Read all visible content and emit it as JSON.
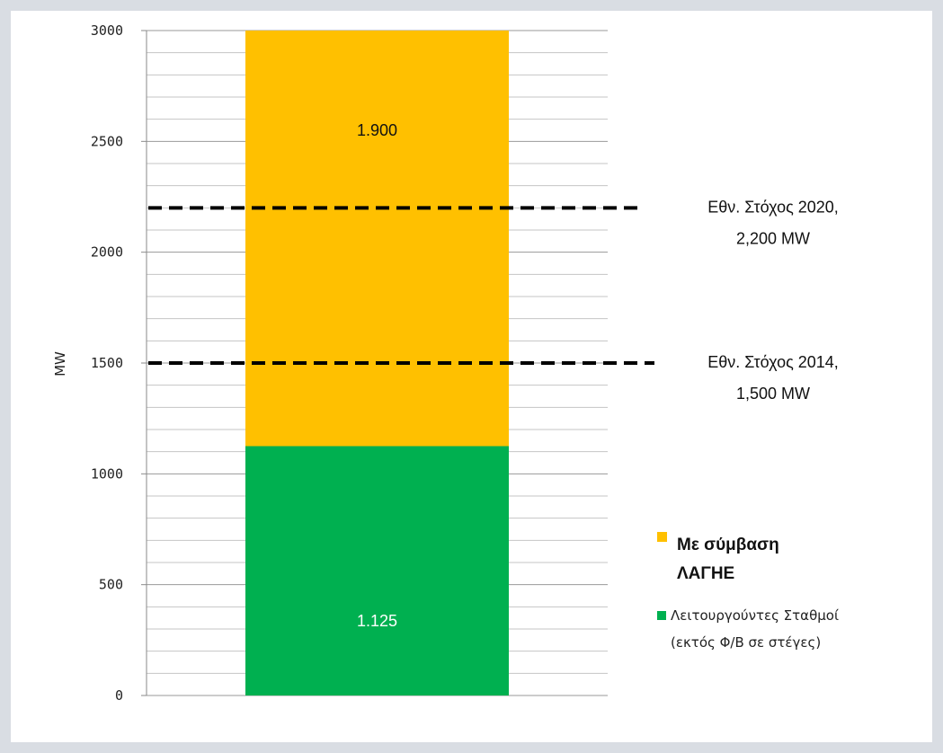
{
  "chart_data": {
    "type": "bar",
    "stacked": true,
    "ylabel": "MW",
    "ylim": [
      0,
      3000
    ],
    "yticks": [
      0,
      500,
      1000,
      1500,
      2000,
      2500,
      3000
    ],
    "grid": true,
    "series": [
      {
        "name_lines": [
          "Λειτουργούντες Σταθμοί",
          "(εκτός Φ/Β σε στέγες)"
        ],
        "value": 1125,
        "label": "1.125",
        "color": "#00b050",
        "label_color": "#ffffff"
      },
      {
        "name_lines": [
          "Με σύμβαση",
          "ΛΑΓΗΕ"
        ],
        "value": 1900,
        "label": "1.900",
        "color": "#ffc000",
        "label_color": "#111111"
      }
    ],
    "reference_lines": [
      {
        "value": 2200,
        "label_lines": [
          "Εθν. Στόχος 2020,",
          "2,200 MW"
        ]
      },
      {
        "value": 1500,
        "label_lines": [
          "Εθν. Στόχος 2014,",
          "1,500 MW"
        ]
      }
    ],
    "legend_position": "right"
  }
}
